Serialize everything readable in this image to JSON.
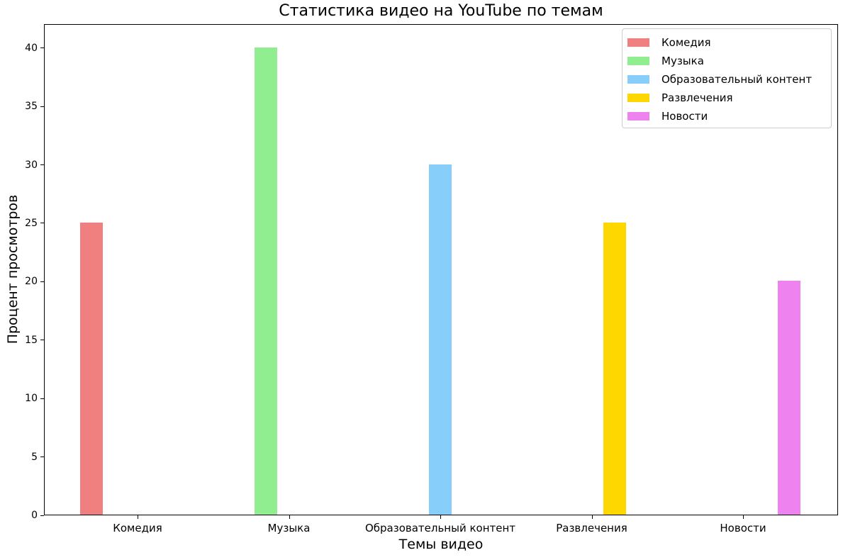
{
  "chart_data": {
    "type": "bar",
    "title": "Статистика видео на YouTube по темам",
    "xlabel": "Темы видео",
    "ylabel": "Процент просмотров",
    "categories": [
      "Комедия",
      "Музыка",
      "Образовательный контент",
      "Развлечения",
      "Новости"
    ],
    "series": [
      {
        "name": "Комедия",
        "value": 25,
        "color": "#F08080"
      },
      {
        "name": "Музыка",
        "value": 40,
        "color": "#90EE90"
      },
      {
        "name": "Образовательный контент",
        "value": 30,
        "color": "#87CEFA"
      },
      {
        "name": "Развлечения",
        "value": 25,
        "color": "#FFD700"
      },
      {
        "name": "Новости",
        "value": 20,
        "color": "#EE82EE"
      }
    ],
    "values": [
      25,
      40,
      30,
      25,
      20
    ],
    "yticks": [
      0,
      5,
      10,
      15,
      20,
      25,
      30,
      35,
      40
    ],
    "ylim": [
      0,
      42.05
    ],
    "grid": false,
    "legend": {
      "position": "upper right",
      "entries": [
        "Комедия",
        "Музыка",
        "Образовательный контент",
        "Развлечения",
        "Новости"
      ]
    },
    "layout": {
      "bar_arrangement": "each series occupies one category, offset (index-2)*bar_width from category tick",
      "axis_color": "#000000",
      "background": "#FFFFFF"
    }
  }
}
